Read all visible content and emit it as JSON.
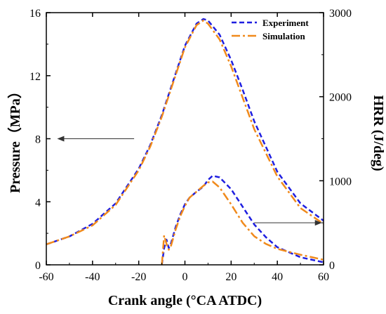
{
  "chart_data": {
    "type": "line",
    "xlabel": "Crank angle (°CA ATDC)",
    "ylabel_left": "Pressure（MPa）",
    "ylabel_right": "HRR (J/deg)",
    "xlim": [
      -60,
      60
    ],
    "ylim_left": [
      0,
      16
    ],
    "ylim_right": [
      0,
      3000
    ],
    "x_ticks": [
      -60,
      -40,
      -20,
      0,
      20,
      40,
      60
    ],
    "y_left_ticks": [
      0,
      4,
      8,
      12,
      16
    ],
    "y_right_ticks": [
      0,
      1000,
      2000,
      3000
    ],
    "grid": false,
    "legend_position": "top-right",
    "colors": {
      "experiment": "#1f1fe0",
      "simulation": "#f08a1c"
    },
    "series": [
      {
        "name": "Experiment",
        "style": "dashed",
        "axis": "left",
        "x": [
          -60,
          -50,
          -40,
          -30,
          -20,
          -15,
          -10,
          -5,
          0,
          5,
          8,
          10,
          15,
          20,
          25,
          30,
          40,
          50,
          60
        ],
        "y": [
          1.3,
          1.8,
          2.6,
          3.9,
          6.1,
          7.6,
          9.5,
          11.7,
          13.9,
          15.3,
          15.6,
          15.5,
          14.6,
          13.0,
          11.1,
          9.1,
          5.9,
          3.9,
          2.8
        ]
      },
      {
        "name": "Simulation",
        "style": "dash-dot",
        "axis": "left",
        "x": [
          -60,
          -50,
          -40,
          -30,
          -20,
          -15,
          -10,
          -5,
          0,
          5,
          8,
          10,
          15,
          20,
          25,
          30,
          40,
          50,
          60
        ],
        "y": [
          1.3,
          1.8,
          2.5,
          3.8,
          6.0,
          7.5,
          9.4,
          11.6,
          13.8,
          15.2,
          15.5,
          15.3,
          14.3,
          12.6,
          10.6,
          8.6,
          5.6,
          3.6,
          2.6
        ]
      },
      {
        "name": "Experiment",
        "style": "dashed",
        "axis": "right",
        "x": [
          -10,
          -9,
          -8,
          -7,
          -6,
          -4,
          -2,
          0,
          2,
          5,
          8,
          10,
          12,
          15,
          20,
          25,
          30,
          35,
          40,
          50,
          60
        ],
        "y": [
          0,
          200,
          300,
          200,
          260,
          450,
          600,
          720,
          800,
          870,
          930,
          1010,
          1060,
          1040,
          900,
          690,
          480,
          330,
          210,
          90,
          30
        ]
      },
      {
        "name": "Simulation",
        "style": "dash-dot",
        "axis": "right",
        "x": [
          -10,
          -9,
          -8,
          -7,
          -6,
          -4,
          -2,
          0,
          2,
          5,
          8,
          10,
          12,
          15,
          20,
          25,
          30,
          35,
          40,
          50,
          60
        ],
        "y": [
          0,
          350,
          250,
          180,
          230,
          420,
          580,
          700,
          800,
          870,
          940,
          980,
          990,
          920,
          720,
          500,
          340,
          250,
          190,
          120,
          60
        ]
      }
    ],
    "annotations": [
      {
        "type": "arrow",
        "from_x": -22,
        "from_y": 8.0,
        "to_x": -55,
        "to_y": 8.0,
        "axis": "left"
      },
      {
        "type": "arrow",
        "from_x": 30,
        "from_y": 500,
        "to_x": 59,
        "to_y": 500,
        "axis": "right"
      }
    ]
  }
}
